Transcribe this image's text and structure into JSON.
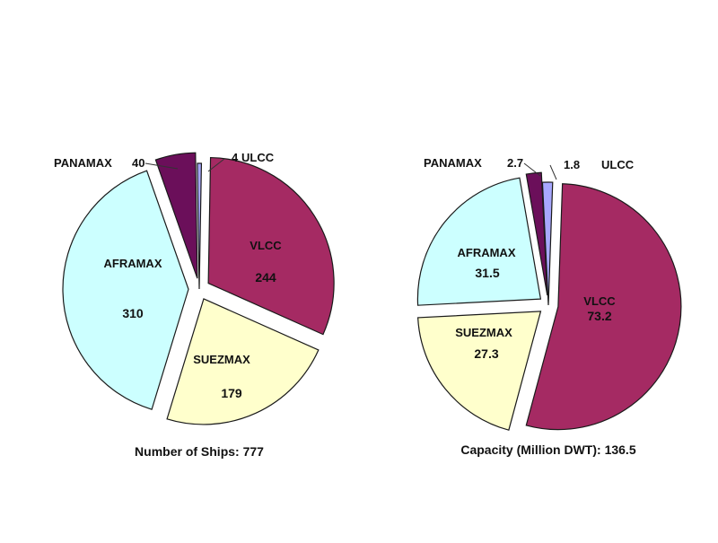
{
  "chart_data": [
    {
      "type": "pie",
      "caption": "Number of Ships:",
      "total": "777",
      "slices": [
        {
          "label": "VLCC",
          "value": 244,
          "value_text": "244",
          "color": "#a52a63",
          "exploded": true
        },
        {
          "label": "SUEZMAX",
          "value": 179,
          "value_text": "179",
          "color": "#ffffcc",
          "exploded": true
        },
        {
          "label": "AFRAMAX",
          "value": 310,
          "value_text": "310",
          "color": "#ccffff",
          "exploded": true
        },
        {
          "label": "PANAMAX",
          "value": 40,
          "value_text": "40",
          "color": "#6b0f5a",
          "exploded": true
        },
        {
          "label": "ULCC",
          "value": 4,
          "value_text": "4",
          "color": "#a8a8ff",
          "exploded": false
        }
      ]
    },
    {
      "type": "pie",
      "caption": "Capacity (Million DWT):",
      "total": "136.5",
      "slices": [
        {
          "label": "VLCC",
          "value": 73.2,
          "value_text": "73.2",
          "color": "#a52a63",
          "exploded": true
        },
        {
          "label": "SUEZMAX",
          "value": 27.3,
          "value_text": "27.3",
          "color": "#ffffcc",
          "exploded": true
        },
        {
          "label": "AFRAMAX",
          "value": 31.5,
          "value_text": "31.5",
          "color": "#ccffff",
          "exploded": true
        },
        {
          "label": "PANAMAX",
          "value": 2.7,
          "value_text": "2.7",
          "color": "#6b0f5a",
          "exploded": true
        },
        {
          "label": "ULCC",
          "value": 1.8,
          "value_text": "1.8",
          "color": "#a8a8ff",
          "exploded": false
        }
      ]
    }
  ]
}
